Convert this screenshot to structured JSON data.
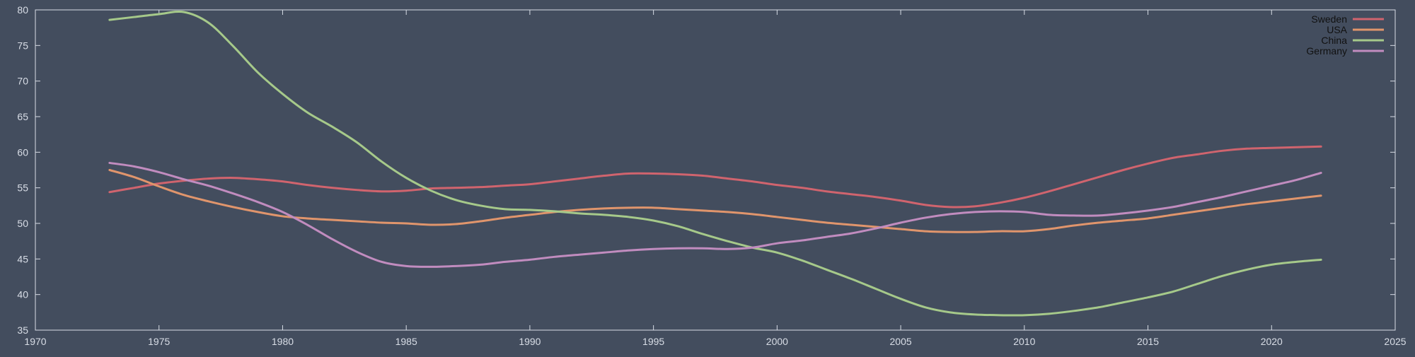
{
  "chart_data": {
    "type": "line",
    "title": "",
    "xlabel": "",
    "ylabel": "",
    "xlim": [
      1970,
      2025
    ],
    "ylim": [
      35,
      80
    ],
    "xticks": [
      1970,
      1975,
      1980,
      1985,
      1990,
      1995,
      2000,
      2005,
      2010,
      2015,
      2020,
      2025
    ],
    "yticks": [
      35,
      40,
      45,
      50,
      55,
      60,
      65,
      70,
      75,
      80
    ],
    "grid": false,
    "legend_position": "top-right",
    "background_color": "#434d5e",
    "axis_color": "#d8dde6",
    "x": [
      1973,
      1974,
      1975,
      1976,
      1977,
      1978,
      1979,
      1980,
      1981,
      1982,
      1983,
      1984,
      1985,
      1986,
      1987,
      1988,
      1989,
      1990,
      1991,
      1992,
      1993,
      1994,
      1995,
      1996,
      1997,
      1998,
      1999,
      2000,
      2001,
      2002,
      2003,
      2004,
      2005,
      2006,
      2007,
      2008,
      2009,
      2010,
      2011,
      2012,
      2013,
      2014,
      2015,
      2016,
      2017,
      2018,
      2019,
      2020,
      2021,
      2022
    ],
    "series": [
      {
        "name": "Sweden",
        "color": "#d0646e",
        "values": [
          54.4,
          55.0,
          55.6,
          56.0,
          56.3,
          56.4,
          56.2,
          55.9,
          55.4,
          55.0,
          54.7,
          54.5,
          54.6,
          54.9,
          55.0,
          55.1,
          55.3,
          55.5,
          55.9,
          56.3,
          56.7,
          57.0,
          57.0,
          56.9,
          56.7,
          56.3,
          55.9,
          55.4,
          55.0,
          54.5,
          54.1,
          53.7,
          53.2,
          52.6,
          52.3,
          52.4,
          52.9,
          53.6,
          54.5,
          55.5,
          56.5,
          57.5,
          58.4,
          59.2,
          59.7,
          60.2,
          60.5,
          60.6,
          60.7,
          60.8
        ]
      },
      {
        "name": "USA",
        "color": "#e0956c",
        "values": [
          57.5,
          56.5,
          55.2,
          54.0,
          53.1,
          52.3,
          51.6,
          51.0,
          50.7,
          50.5,
          50.3,
          50.1,
          50.0,
          49.8,
          49.9,
          50.3,
          50.8,
          51.2,
          51.6,
          51.9,
          52.1,
          52.2,
          52.2,
          52.0,
          51.8,
          51.6,
          51.3,
          50.9,
          50.5,
          50.1,
          49.8,
          49.5,
          49.2,
          48.9,
          48.8,
          48.8,
          48.9,
          48.9,
          49.2,
          49.7,
          50.1,
          50.4,
          50.7,
          51.2,
          51.7,
          52.2,
          52.7,
          53.1,
          53.5,
          53.9
        ]
      },
      {
        "name": "China",
        "color": "#a6c98a",
        "values": [
          78.6,
          79.0,
          79.4,
          79.7,
          78.2,
          74.9,
          71.2,
          68.2,
          65.6,
          63.6,
          61.4,
          58.7,
          56.4,
          54.6,
          53.3,
          52.5,
          52.0,
          51.9,
          51.7,
          51.4,
          51.2,
          50.9,
          50.4,
          49.6,
          48.5,
          47.5,
          46.6,
          45.9,
          44.8,
          43.5,
          42.2,
          40.8,
          39.4,
          38.2,
          37.5,
          37.2,
          37.1,
          37.1,
          37.3,
          37.7,
          38.2,
          38.9,
          39.6,
          40.4,
          41.5,
          42.6,
          43.5,
          44.2,
          44.6,
          44.9
        ]
      },
      {
        "name": "Germany",
        "color": "#c18cbf",
        "values": [
          58.5,
          58.0,
          57.2,
          56.2,
          55.3,
          54.2,
          53.0,
          51.6,
          49.8,
          47.8,
          46.0,
          44.6,
          44.0,
          43.9,
          44.0,
          44.2,
          44.6,
          44.9,
          45.3,
          45.6,
          45.9,
          46.2,
          46.4,
          46.5,
          46.5,
          46.4,
          46.6,
          47.2,
          47.6,
          48.1,
          48.6,
          49.3,
          50.1,
          50.8,
          51.3,
          51.6,
          51.7,
          51.6,
          51.2,
          51.1,
          51.1,
          51.4,
          51.8,
          52.3,
          53.0,
          53.7,
          54.5,
          55.3,
          56.1,
          57.1
        ]
      }
    ]
  }
}
